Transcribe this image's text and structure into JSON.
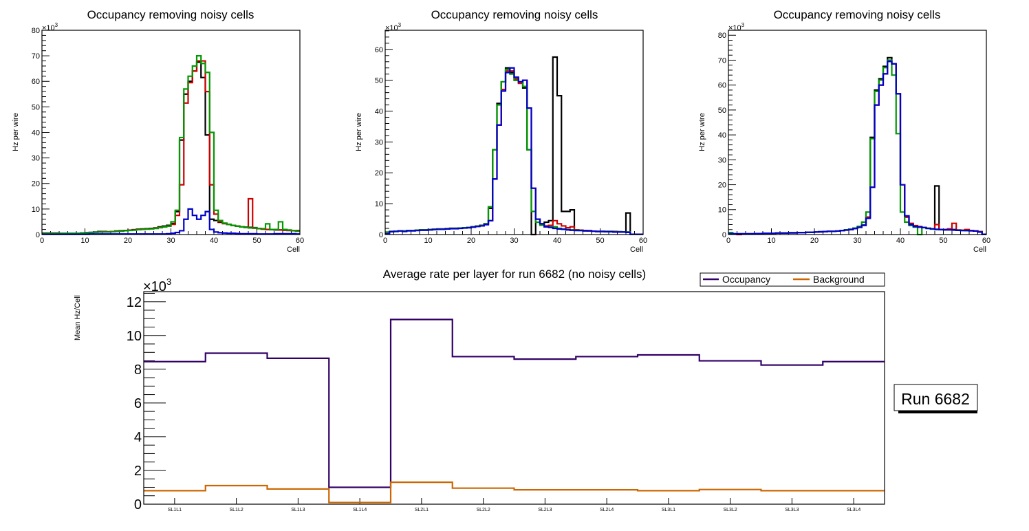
{
  "chart_data": [
    {
      "type": "histogram-step",
      "panel": "top-left",
      "title": "Occupancy removing noisy cells",
      "xlabel": "Cell",
      "ylabel": "Hz per wire",
      "y_exponent_label": "×10",
      "y_exponent": "3",
      "xlim": [
        0,
        60
      ],
      "ylim": [
        0,
        80
      ],
      "x_ticks": [
        0,
        10,
        20,
        30,
        40,
        50,
        60
      ],
      "y_ticks": [
        0,
        10,
        20,
        30,
        40,
        50,
        60,
        70,
        80
      ],
      "bin_width": 1,
      "series": [
        {
          "name": "black",
          "color": "#000000",
          "values": [
            0.5,
            0.5,
            0.5,
            0.5,
            0.5,
            0.5,
            0.5,
            0.5,
            0.5,
            0.6,
            0.7,
            0.8,
            1.0,
            1.2,
            1.2,
            1.1,
            1.2,
            1.4,
            1.5,
            1.6,
            1.7,
            1.9,
            2.1,
            2.2,
            2.3,
            2.4,
            2.6,
            3.0,
            3.3,
            3.6,
            4.3,
            9.0,
            37,
            55,
            60,
            64,
            67.5,
            61.5,
            39,
            6,
            5.5,
            4.8,
            4.3,
            4.0,
            3.6,
            3.3,
            3.0,
            2.9,
            2.8,
            2.7,
            2.4,
            2.2,
            2.0,
            1.9,
            1.8,
            1.8,
            1.7,
            1.6,
            1.5,
            1.4
          ]
        },
        {
          "name": "red",
          "color": "#cc0000",
          "values": [
            0.6,
            0.6,
            0.6,
            0.6,
            0.5,
            0.5,
            0.5,
            0.5,
            0.5,
            0.6,
            0.7,
            0.8,
            0.9,
            1.0,
            1.1,
            1.1,
            1.2,
            1.3,
            1.4,
            1.5,
            1.7,
            1.8,
            2.0,
            2.1,
            2.2,
            2.3,
            2.5,
            2.8,
            3.0,
            3.3,
            4.0,
            7.5,
            19.5,
            51.5,
            59.5,
            64,
            68,
            68,
            56,
            19.5,
            8,
            5,
            4.3,
            4.0,
            3.6,
            3.3,
            3.0,
            2.8,
            14,
            2.5,
            2.3,
            2.1,
            2.0,
            2.0,
            1.9,
            1.8,
            1.7,
            1.6,
            1.5,
            1.6
          ]
        },
        {
          "name": "green",
          "color": "#009900",
          "values": [
            0.5,
            0.5,
            0.5,
            0.5,
            0.5,
            0.5,
            0.5,
            0.5,
            0.5,
            0.6,
            0.7,
            0.8,
            0.9,
            1.0,
            1.0,
            1.0,
            1.1,
            1.2,
            1.3,
            1.5,
            1.6,
            1.7,
            1.9,
            2.0,
            2.1,
            2.2,
            2.4,
            2.7,
            3.0,
            3.3,
            5.0,
            9.5,
            38,
            57,
            62,
            66,
            70,
            67,
            63.5,
            40,
            9.5,
            5.5,
            4.5,
            4.0,
            3.6,
            3.3,
            3.0,
            2.8,
            2.6,
            2.6,
            2.4,
            2.3,
            4.2,
            2.0,
            2.0,
            5.0,
            2.0,
            1.8,
            1.6,
            1.3
          ]
        },
        {
          "name": "blue",
          "color": "#0000cc",
          "values": [
            0.1,
            0.1,
            0.1,
            0.1,
            0.1,
            0.1,
            0.1,
            0.1,
            0.1,
            0.1,
            0.1,
            0.2,
            0.2,
            0.2,
            0.2,
            0.2,
            0.2,
            0.2,
            0.2,
            0.2,
            0.2,
            0.2,
            0.2,
            0.2,
            0.2,
            0.2,
            0.2,
            0.2,
            0.2,
            0.3,
            0.5,
            0.8,
            1.5,
            6,
            10,
            7.5,
            6,
            7.5,
            9,
            2,
            1,
            0.7,
            0.6,
            0.5,
            0.5,
            0.4,
            0.3,
            0.3,
            0.3,
            0.3,
            0.2,
            0.2,
            0.2,
            0.2,
            0.3,
            0.3,
            0.3,
            0.3,
            0.3,
            0.2
          ]
        }
      ]
    },
    {
      "type": "histogram-step",
      "panel": "top-center",
      "title": "Occupancy removing noisy cells",
      "xlabel": "Cell",
      "ylabel": "Hz per wire",
      "y_exponent_label": "×10",
      "y_exponent": "3",
      "xlim": [
        0,
        60
      ],
      "ylim": [
        0,
        66.2
      ],
      "x_ticks": [
        0,
        10,
        20,
        30,
        40,
        50,
        60
      ],
      "y_ticks": [
        0,
        10,
        20,
        30,
        40,
        50,
        60
      ],
      "bin_width": 1,
      "series": [
        {
          "name": "black",
          "color": "#000000",
          "values": [
            0.5,
            1.0,
            1.1,
            1.2,
            1.2,
            1.3,
            1.3,
            1.4,
            1.5,
            1.5,
            1.6,
            1.7,
            1.8,
            1.8,
            1.9,
            2.0,
            2.0,
            2.1,
            2.2,
            2.3,
            2.5,
            2.7,
            3.0,
            3.5,
            8.5,
            27.5,
            42.5,
            49.5,
            54,
            52.5,
            50,
            49.5,
            47.5,
            27.5,
            0,
            5,
            3.5,
            4,
            4.5,
            57.5,
            45,
            7.5,
            7.5,
            8,
            1.5,
            1.4,
            1.3,
            1.2,
            1.1,
            1.0,
            1.0,
            1.0,
            1.0,
            0.9,
            0.9,
            0.8,
            7,
            0.1,
            0.1,
            0.1
          ]
        },
        {
          "name": "red",
          "color": "#cc0000",
          "values": [
            0.5,
            1.0,
            1.1,
            1.2,
            1.2,
            1.3,
            1.3,
            1.4,
            1.5,
            1.5,
            1.6,
            1.7,
            1.8,
            1.8,
            1.9,
            2.0,
            2.0,
            2.1,
            2.2,
            2.3,
            2.5,
            2.7,
            2.9,
            3.3,
            4.5,
            18,
            35.5,
            47,
            53,
            53,
            50.5,
            49,
            50,
            41,
            15,
            5,
            3.5,
            2.8,
            3,
            4.5,
            3.5,
            2.8,
            2.2,
            2.5,
            1.5,
            1.4,
            1.3,
            1.3,
            1.1,
            1.0,
            1.0,
            1.0,
            1.0,
            1.0,
            0.9,
            0.8,
            0.8,
            0.1,
            0.1,
            0.1
          ]
        },
        {
          "name": "green",
          "color": "#009900",
          "values": [
            0.8,
            1.0,
            1.1,
            1.2,
            1.2,
            1.3,
            1.3,
            1.4,
            1.5,
            1.5,
            1.6,
            1.7,
            1.8,
            1.8,
            1.9,
            2.0,
            2.0,
            2.1,
            2.2,
            2.3,
            2.5,
            2.7,
            2.9,
            3.5,
            9,
            27.5,
            42,
            49.5,
            53.5,
            52,
            50,
            49.5,
            48,
            27.5,
            7.5,
            4,
            3,
            2.5,
            2.5,
            2.5,
            2,
            1.8,
            1.6,
            1.5,
            1.4,
            1.3,
            1.2,
            1.2,
            1.1,
            1.0,
            1.0,
            1.0,
            1.0,
            0.9,
            0.9,
            0.8,
            0.8,
            0.1,
            0.1,
            0.1
          ]
        },
        {
          "name": "blue",
          "color": "#0000cc",
          "values": [
            0.2,
            0.9,
            1.0,
            1.2,
            1.0,
            1.2,
            1.2,
            1.3,
            1.4,
            1.4,
            1.5,
            1.6,
            1.7,
            1.7,
            1.8,
            1.9,
            1.9,
            2.0,
            2.1,
            2.2,
            2.4,
            2.6,
            2.8,
            3.2,
            4.5,
            18,
            35.5,
            46.5,
            52.5,
            54,
            51,
            49.5,
            50,
            41,
            15,
            5,
            3.5,
            2.5,
            2.3,
            2.0,
            1.8,
            1.7,
            1.5,
            1.4,
            1.3,
            1.3,
            1.2,
            1.2,
            1.1,
            1.0,
            1.0,
            0.9,
            0.9,
            0.8,
            0.8,
            0.8,
            0.7,
            0.1,
            0.1,
            0.1
          ]
        }
      ]
    },
    {
      "type": "histogram-step",
      "panel": "top-right",
      "title": "Occupancy removing noisy cells",
      "xlabel": "Cell",
      "ylabel": "Hz per wire",
      "y_exponent_label": "×10",
      "y_exponent": "3",
      "xlim": [
        0,
        60
      ],
      "ylim": [
        0,
        82
      ],
      "x_ticks": [
        0,
        10,
        20,
        30,
        40,
        50,
        60
      ],
      "y_ticks": [
        0,
        10,
        20,
        30,
        40,
        50,
        60,
        70,
        80
      ],
      "bin_width": 1,
      "series": [
        {
          "name": "black",
          "color": "#000000",
          "values": [
            0.5,
            0.3,
            0.3,
            0.3,
            0.3,
            0.3,
            0.4,
            0.4,
            0.5,
            0.5,
            0.5,
            0.6,
            0.6,
            0.6,
            0.7,
            0.7,
            0.8,
            0.8,
            0.9,
            0.9,
            1.0,
            1.1,
            1.2,
            1.3,
            1.3,
            1.4,
            1.6,
            1.9,
            2.1,
            2.5,
            3.0,
            3.8,
            7,
            39,
            58,
            62.5,
            67.5,
            71,
            68.5,
            56.5,
            20,
            7,
            4,
            3.4,
            3.0,
            2.8,
            2.5,
            2.3,
            19.5,
            2.0,
            2.0,
            2.0,
            2.0,
            1.8,
            1.7,
            1.6,
            1.6,
            1.5,
            1.2,
            0.1
          ]
        },
        {
          "name": "red",
          "color": "#cc0000",
          "values": [
            0.3,
            0.3,
            0.0,
            0.3,
            0.3,
            0.3,
            0.4,
            0.4,
            0.5,
            0.5,
            0.5,
            0.6,
            0.6,
            0.6,
            0.7,
            0.7,
            0.8,
            0.8,
            0.9,
            0.9,
            1.0,
            1.1,
            1.2,
            1.3,
            1.3,
            1.4,
            1.6,
            1.8,
            2.0,
            2.4,
            2.9,
            3.7,
            7,
            19,
            52,
            60,
            64.5,
            69.5,
            68.5,
            56.5,
            20,
            7,
            4.5,
            3.6,
            3.2,
            2.8,
            2.5,
            2.3,
            4,
            2.0,
            2.0,
            2.3,
            4.5,
            1.8,
            1.7,
            2.0,
            1.6,
            1.5,
            1.2,
            0.1
          ]
        },
        {
          "name": "green",
          "color": "#009900",
          "values": [
            0.8,
            0.3,
            0.3,
            0.3,
            0.3,
            0.3,
            0.4,
            0.4,
            0.5,
            0.5,
            0.5,
            0.6,
            0.6,
            0.6,
            0.7,
            0.7,
            0.8,
            0.8,
            0.9,
            0.9,
            1.0,
            1.1,
            1.2,
            1.3,
            1.3,
            1.4,
            1.6,
            1.9,
            2.1,
            2.6,
            3.3,
            5.0,
            9,
            38.5,
            57.5,
            62,
            67,
            70,
            64,
            40.5,
            9,
            5,
            3.6,
            3.0,
            0,
            2.8,
            2.4,
            2.2,
            2.0,
            2.0,
            1.9,
            1.9,
            1.8,
            1.7,
            1.6,
            1.6,
            1.5,
            1.4,
            1.0,
            0.1
          ]
        },
        {
          "name": "blue",
          "color": "#0000cc",
          "values": [
            0.3,
            0.3,
            0.3,
            0.3,
            0.3,
            0.3,
            0.4,
            0.4,
            0.5,
            0.5,
            0.5,
            0.6,
            0.6,
            0.6,
            0.7,
            0.7,
            0.8,
            0.8,
            0.9,
            0.9,
            1.0,
            1.1,
            1.2,
            1.3,
            1.3,
            1.4,
            1.6,
            1.8,
            2.0,
            2.4,
            2.9,
            3.7,
            6.5,
            19,
            52,
            60,
            64.5,
            69.5,
            68.5,
            56.5,
            20,
            7.5,
            4,
            3.2,
            3.0,
            2.8,
            2.5,
            2.3,
            2.1,
            2.0,
            1.9,
            1.9,
            1.8,
            1.7,
            1.6,
            1.6,
            1.5,
            1.4,
            1.0,
            0.1
          ]
        }
      ]
    },
    {
      "type": "histogram-step",
      "panel": "bottom",
      "title": "Average rate per layer for run 6682 (no noisy cells)",
      "xlabel": "",
      "ylabel": "Mean Hz/Cell",
      "y_exponent_label": "×10",
      "y_exponent": "3",
      "categories": [
        "SL1L1",
        "SL1L2",
        "SL1L3",
        "SL1L4",
        "SL2L1",
        "SL2L2",
        "SL2L3",
        "SL2L4",
        "SL3L1",
        "SL3L2",
        "SL3L3",
        "SL3L4"
      ],
      "ylim": [
        0,
        12.6
      ],
      "y_ticks": [
        0,
        2,
        4,
        6,
        8,
        10,
        12
      ],
      "legend_position": "top-right",
      "series": [
        {
          "name": "Occupancy",
          "color": "#330066",
          "values": [
            8.45,
            8.95,
            8.65,
            1.0,
            10.95,
            8.75,
            8.6,
            8.75,
            8.85,
            8.5,
            8.25,
            8.45
          ]
        },
        {
          "name": "Background",
          "color": "#cc6600",
          "values": [
            0.8,
            1.1,
            0.9,
            0.1,
            1.3,
            0.95,
            0.85,
            0.85,
            0.8,
            0.87,
            0.8,
            0.8
          ]
        }
      ]
    }
  ],
  "run_box": {
    "label": "Run 6682"
  }
}
